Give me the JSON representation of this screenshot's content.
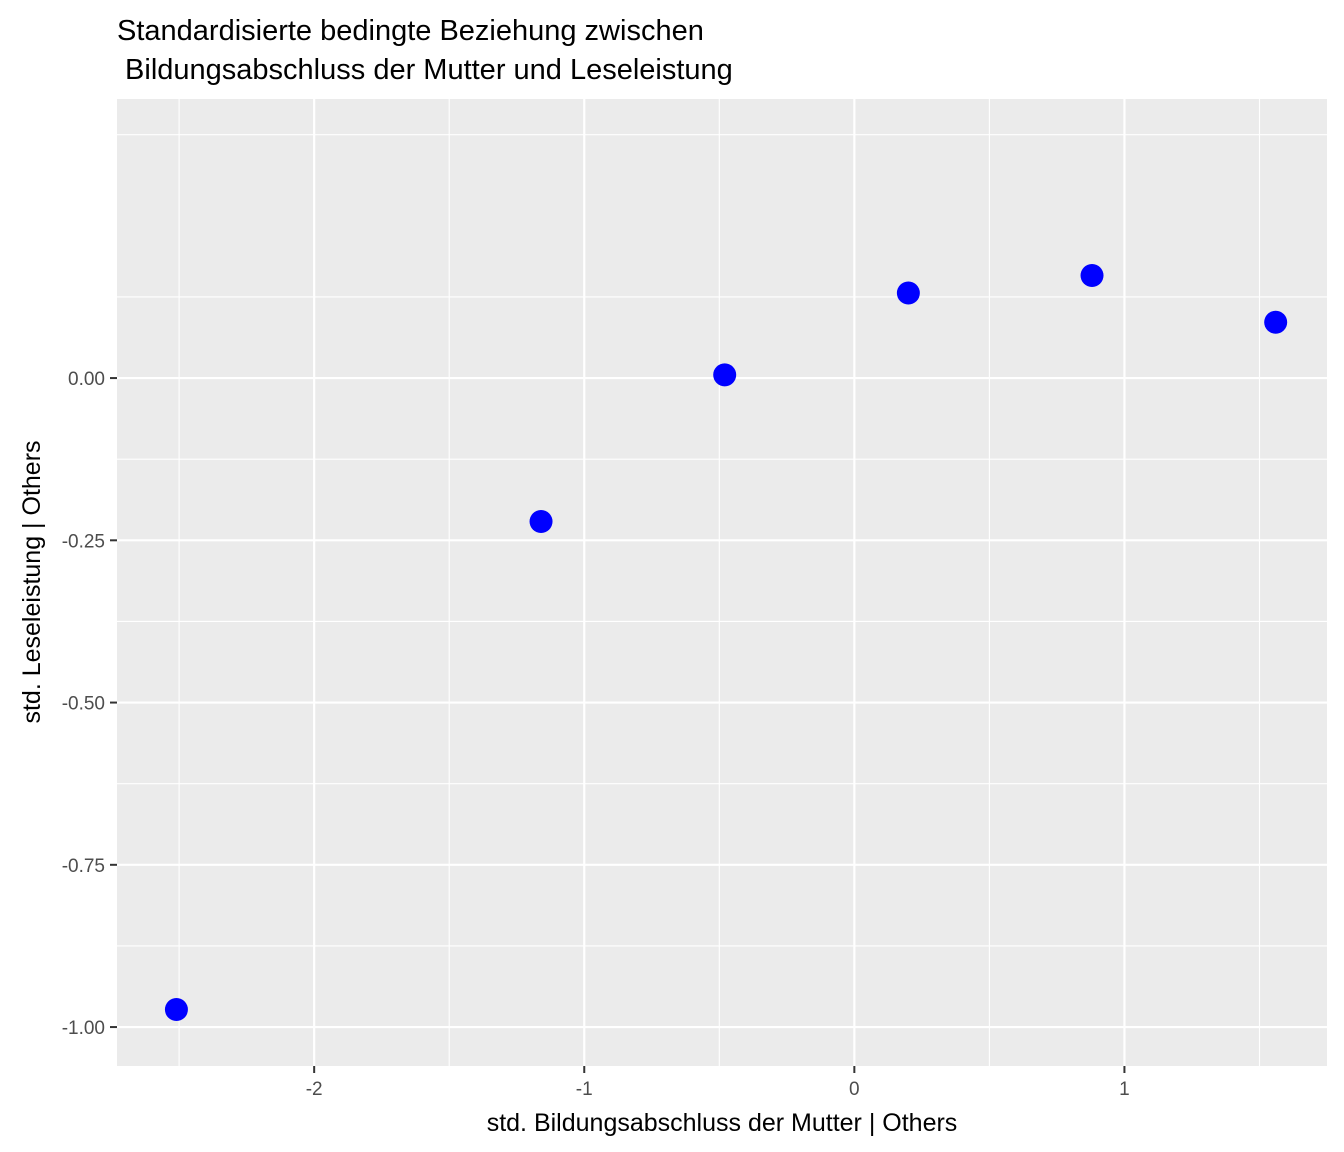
{
  "chart_data": {
    "type": "scatter",
    "title_lines": [
      "Standardisierte bedingte Beziehung zwischen",
      " Bildungsabschluss der Mutter und Leseleistung"
    ],
    "xlabel": "std. Bildungsabschluss der Mutter | Others",
    "ylabel": "std. Leseleistung | Others",
    "xlim": [
      -2.73,
      1.75
    ],
    "ylim": [
      -1.06,
      0.43
    ],
    "x_ticks": [
      -2,
      -1,
      0,
      1
    ],
    "x_tick_labels": [
      "-2",
      "-1",
      "0",
      "1"
    ],
    "y_ticks": [
      0.0,
      -0.25,
      -0.5,
      -0.75,
      -1.0
    ],
    "y_tick_labels": [
      "0.00",
      "-0.25",
      "-0.50",
      "-0.75",
      "-1.00"
    ],
    "grid": true,
    "point_color": "#0000ff",
    "panel_background": "#ebebeb",
    "gridline_color": "#ffffff",
    "points": [
      {
        "x": -2.51,
        "y": -0.973
      },
      {
        "x": -1.16,
        "y": -0.221
      },
      {
        "x": -0.48,
        "y": 0.005
      },
      {
        "x": 0.2,
        "y": 0.131
      },
      {
        "x": 0.88,
        "y": 0.158
      },
      {
        "x": 1.56,
        "y": 0.086
      }
    ]
  }
}
